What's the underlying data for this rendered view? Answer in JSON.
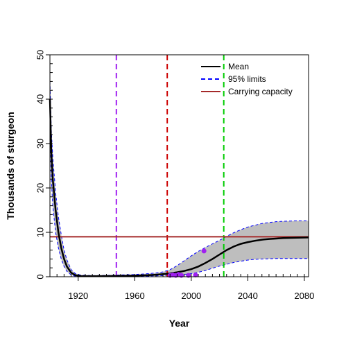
{
  "chart_data": {
    "type": "line",
    "xlabel": "Year",
    "ylabel": "Thousands of sturgeon",
    "xlim": [
      1900,
      2083
    ],
    "ylim": [
      0,
      50
    ],
    "x_ticks": [
      1920,
      1960,
      2000,
      2040,
      2080
    ],
    "y_ticks": [
      0,
      10,
      20,
      30,
      40,
      50
    ],
    "x_minor_step": 5,
    "y_minor_step": 2,
    "legend": {
      "placement": "top-right",
      "entries": [
        {
          "label": "Mean",
          "color": "#000000",
          "style": "solid"
        },
        {
          "label": "95%  limits",
          "color": "#0000ff",
          "style": "dashed"
        },
        {
          "label": "Carrying capacity",
          "color": "#a52a2a",
          "style": "solid"
        }
      ]
    },
    "colors": {
      "mean": "#000000",
      "limits": "#0000ff",
      "band": "#bebebe",
      "carrying_capacity": "#a52a2a",
      "observations": "#a020f0"
    },
    "series": [
      {
        "key": "mean",
        "x": [
          1900,
          1901,
          1902,
          1904,
          1906,
          1908,
          1910,
          1912,
          1915,
          1918,
          1922,
          1930,
          1940,
          1950,
          1960,
          1970,
          1975,
          1980,
          1985,
          1990,
          1995,
          2000,
          2005,
          2010,
          2015,
          2020,
          2025,
          2030,
          2035,
          2040,
          2045,
          2050,
          2055,
          2060,
          2065,
          2070,
          2075,
          2083
        ],
        "values": [
          40,
          28,
          22,
          15,
          10,
          6.5,
          4,
          2.3,
          0.9,
          0.35,
          0.15,
          0.12,
          0.15,
          0.2,
          0.25,
          0.35,
          0.45,
          0.6,
          0.75,
          1.0,
          1.3,
          1.7,
          2.3,
          3.1,
          4.0,
          5.0,
          6.0,
          6.8,
          7.4,
          7.8,
          8.1,
          8.35,
          8.5,
          8.6,
          8.7,
          8.75,
          8.8,
          8.85
        ]
      },
      {
        "key": "upper",
        "x": [
          1900,
          1901,
          1902,
          1904,
          1906,
          1908,
          1910,
          1912,
          1915,
          1918,
          1922,
          1930,
          1940,
          1950,
          1960,
          1970,
          1975,
          1980,
          1985,
          1990,
          1995,
          2000,
          2005,
          2010,
          2015,
          2020,
          2025,
          2030,
          2035,
          2040,
          2045,
          2050,
          2055,
          2060,
          2065,
          2070,
          2075,
          2083
        ],
        "values": [
          44,
          33,
          27,
          19,
          13.5,
          9.5,
          6,
          3.8,
          1.6,
          0.7,
          0.35,
          0.25,
          0.3,
          0.4,
          0.5,
          0.7,
          0.85,
          1.1,
          1.6,
          2.5,
          3.6,
          4.7,
          5.7,
          6.6,
          7.4,
          8.2,
          9.1,
          9.9,
          10.6,
          11.2,
          11.6,
          12.0,
          12.2,
          12.4,
          12.5,
          12.55,
          12.6,
          12.6
        ]
      },
      {
        "key": "lower",
        "x": [
          1900,
          1901,
          1902,
          1904,
          1906,
          1908,
          1910,
          1912,
          1915,
          1918,
          1922,
          1930,
          1940,
          1950,
          1960,
          1970,
          1975,
          1980,
          1985,
          1990,
          1995,
          2000,
          2005,
          2010,
          2015,
          2020,
          2025,
          2030,
          2035,
          2040,
          2045,
          2050,
          2055,
          2060,
          2065,
          2070,
          2075,
          2083
        ],
        "values": [
          34,
          22,
          16,
          10,
          6.5,
          4,
          2.3,
          1.2,
          0.4,
          0.12,
          0.05,
          0.05,
          0.06,
          0.08,
          0.1,
          0.15,
          0.2,
          0.25,
          0.3,
          0.4,
          0.5,
          0.7,
          1.0,
          1.4,
          1.9,
          2.4,
          2.8,
          3.2,
          3.5,
          3.75,
          3.9,
          4.0,
          4.05,
          4.1,
          4.1,
          4.1,
          4.1,
          4.1
        ]
      }
    ],
    "carrying_capacity": 9,
    "vertical_lines": [
      {
        "x": 1947,
        "color": "#a020f0"
      },
      {
        "x": 1983,
        "color": "#cc0000"
      },
      {
        "x": 2023,
        "color": "#00cc00"
      }
    ],
    "observations": {
      "x": [
        1985,
        1987,
        1989,
        1991,
        1993,
        1998,
        2003,
        2009
      ],
      "y": [
        0.3,
        0.4,
        0.3,
        0.5,
        0.3,
        0.3,
        0.4,
        5.8
      ]
    }
  }
}
